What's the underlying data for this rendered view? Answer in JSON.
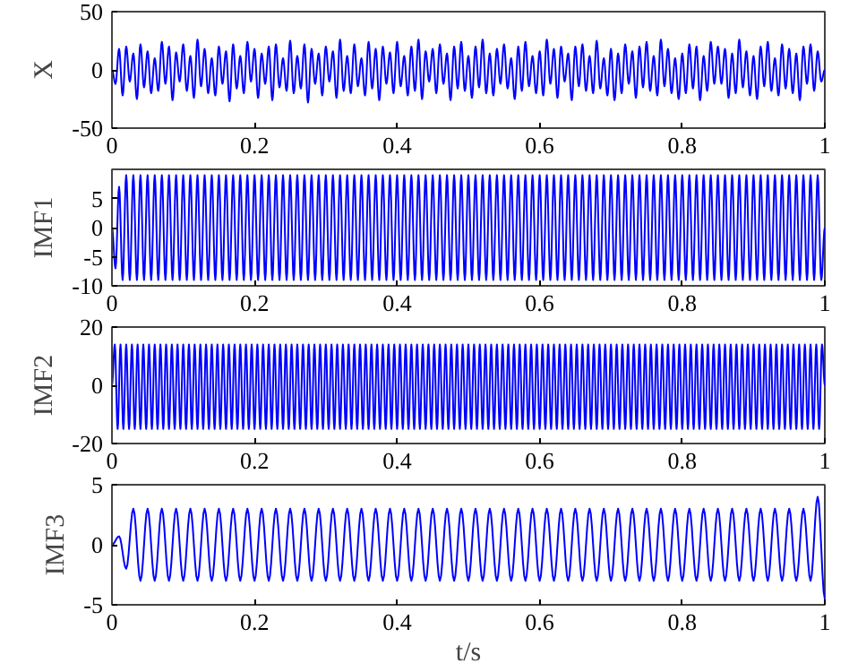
{
  "chart_data": [
    {
      "type": "line",
      "ylabel": "X",
      "xlim": [
        0,
        1
      ],
      "xticks": [
        0,
        0.2,
        0.4,
        0.6,
        0.8,
        1
      ],
      "ylim": [
        -50,
        50
      ],
      "yticks": [
        -50,
        0,
        50
      ],
      "x": [
        0,
        0.005,
        0.01,
        0.015,
        0.02,
        0.025,
        0.03,
        0.035,
        0.04,
        0.045,
        0.05,
        0.055,
        0.06,
        0.065,
        0.07,
        0.075,
        0.08,
        0.085,
        0.09,
        0.095,
        0.1,
        0.105,
        0.11,
        0.115,
        0.12,
        0.125,
        0.13,
        0.135,
        0.14,
        0.145,
        0.15,
        0.155,
        0.16,
        0.165,
        0.17,
        0.175,
        0.18,
        0.185,
        0.19,
        0.195,
        0.2,
        0.205,
        0.21,
        0.215,
        0.22,
        0.225,
        0.23,
        0.235,
        0.24,
        0.245,
        0.25,
        0.255,
        0.26,
        0.265,
        0.27,
        0.275,
        0.28,
        0.285,
        0.29,
        0.295,
        0.3,
        0.305,
        0.31,
        0.315,
        0.32,
        0.325,
        0.33,
        0.335,
        0.34,
        0.345,
        0.35,
        0.355,
        0.36,
        0.365,
        0.37,
        0.375,
        0.38,
        0.385,
        0.39,
        0.395,
        0.4,
        0.405,
        0.41,
        0.415,
        0.42,
        0.425,
        0.43,
        0.435,
        0.44,
        0.445,
        0.45,
        0.455,
        0.46,
        0.465,
        0.47,
        0.475,
        0.48,
        0.485,
        0.49,
        0.495,
        0.5,
        0.505,
        0.51,
        0.515,
        0.52,
        0.525,
        0.53,
        0.535,
        0.54,
        0.545,
        0.55,
        0.555,
        0.56,
        0.565,
        0.57,
        0.575,
        0.58,
        0.585,
        0.59,
        0.595,
        0.6,
        0.605,
        0.61,
        0.615,
        0.62,
        0.625,
        0.63,
        0.635,
        0.64,
        0.645,
        0.65,
        0.655,
        0.66,
        0.665,
        0.67,
        0.675,
        0.68,
        0.685,
        0.69,
        0.695,
        0.7,
        0.705,
        0.71,
        0.715,
        0.72,
        0.725,
        0.73,
        0.735,
        0.74,
        0.745,
        0.75,
        0.755,
        0.76,
        0.765,
        0.77,
        0.775,
        0.78,
        0.785,
        0.79,
        0.795,
        0.8,
        0.805,
        0.81,
        0.815,
        0.82,
        0.825,
        0.83,
        0.835,
        0.84,
        0.845,
        0.85,
        0.855,
        0.86,
        0.865,
        0.87,
        0.875,
        0.88,
        0.885,
        0.89,
        0.895,
        0.9,
        0.905,
        0.91,
        0.915,
        0.92,
        0.925,
        0.93,
        0.935,
        0.94,
        0.945,
        0.95,
        0.955,
        0.96,
        0.965,
        0.97,
        0.975,
        0.98,
        0.985,
        0.99,
        0.995,
        1
      ],
      "series": [
        {
          "color": "#0000ff",
          "values": [
            0,
            -12,
            18,
            -22,
            20,
            -10,
            14,
            -25,
            22,
            -15,
            16,
            -20,
            10,
            -18,
            24,
            -12,
            20,
            -26,
            15,
            -10,
            22,
            -18,
            12,
            -24,
            26,
            -14,
            18,
            -20,
            10,
            -22,
            20,
            -12,
            16,
            -27,
            22,
            -16,
            12,
            -20,
            24,
            -10,
            18,
            -24,
            14,
            -12,
            20,
            -26,
            22,
            -15,
            10,
            -18,
            25,
            -20,
            12,
            -16,
            22,
            -28,
            18,
            -12,
            14,
            -22,
            20,
            -10,
            16,
            -24,
            26,
            -18,
            12,
            -20,
            22,
            -14,
            10,
            -22,
            24,
            -16,
            18,
            -26,
            20,
            -12,
            15,
            -20,
            24,
            -14,
            12,
            -22,
            20,
            -18,
            26,
            -25,
            16,
            -10,
            18,
            -20,
            22,
            -12,
            14,
            -26,
            20,
            -16,
            24,
            -18,
            12,
            -24,
            20,
            -15,
            26,
            -20,
            14,
            -22,
            18,
            -12,
            22,
            -16,
            10,
            -25,
            20,
            -18,
            24,
            -14,
            12,
            -20,
            16,
            -22,
            26,
            -12,
            18,
            -24,
            20,
            -10,
            14,
            -26,
            20,
            -14,
            22,
            -18,
            12,
            -20,
            25,
            -16,
            10,
            -22,
            18,
            -26,
            14,
            -20,
            22,
            -12,
            16,
            -24,
            20,
            -15,
            24,
            -18,
            12,
            -22,
            26,
            -14,
            18,
            -20,
            10,
            -25,
            14,
            -20,
            22,
            -16,
            20,
            -26,
            12,
            -18,
            24,
            -12,
            20,
            -12,
            18,
            -24,
            14,
            -20,
            26,
            -15,
            16,
            -22,
            12,
            -25,
            20,
            -14,
            24,
            -18,
            10,
            -22,
            22,
            -16,
            18,
            -20,
            14,
            -26,
            20,
            -12,
            22,
            -18,
            16,
            -10,
            0
          ]
        }
      ]
    },
    {
      "type": "line",
      "ylabel": "IMF1",
      "xlim": [
        0,
        1
      ],
      "xticks": [
        0,
        0.2,
        0.4,
        0.6,
        0.8,
        1
      ],
      "ylim": [
        -10,
        10
      ],
      "yticks": [
        -10,
        -5,
        0,
        5
      ],
      "x": [
        0,
        0.005,
        0.01,
        0.015,
        0.02,
        0.025,
        0.03,
        0.035,
        0.04,
        0.045,
        0.05,
        0.055,
        0.06,
        0.065,
        0.07,
        0.075,
        0.08,
        0.085,
        0.09,
        0.095,
        0.1,
        0.105,
        0.11,
        0.115,
        0.12,
        0.125,
        0.13,
        0.135,
        0.14,
        0.145,
        0.15,
        0.155,
        0.16,
        0.165,
        0.17,
        0.175,
        0.18,
        0.185,
        0.19,
        0.195,
        0.2,
        0.205,
        0.21,
        0.215,
        0.22,
        0.225,
        0.23,
        0.235,
        0.24,
        0.245,
        0.25,
        0.255,
        0.26,
        0.265,
        0.27,
        0.275,
        0.28,
        0.285,
        0.29,
        0.295,
        0.3,
        0.305,
        0.31,
        0.315,
        0.32,
        0.325,
        0.33,
        0.335,
        0.34,
        0.345,
        0.35,
        0.355,
        0.36,
        0.365,
        0.37,
        0.375,
        0.38,
        0.385,
        0.39,
        0.395,
        0.4,
        0.405,
        0.41,
        0.415,
        0.42,
        0.425,
        0.43,
        0.435,
        0.44,
        0.445,
        0.45,
        0.455,
        0.46,
        0.465,
        0.47,
        0.475,
        0.48,
        0.485,
        0.49,
        0.495,
        0.5,
        0.505,
        0.51,
        0.515,
        0.52,
        0.525,
        0.53,
        0.535,
        0.54,
        0.545,
        0.55,
        0.555,
        0.56,
        0.565,
        0.57,
        0.575,
        0.58,
        0.585,
        0.59,
        0.595,
        0.6,
        0.605,
        0.61,
        0.615,
        0.62,
        0.625,
        0.63,
        0.635,
        0.64,
        0.645,
        0.65,
        0.655,
        0.66,
        0.665,
        0.67,
        0.675,
        0.68,
        0.685,
        0.69,
        0.695,
        0.7,
        0.705,
        0.71,
        0.715,
        0.72,
        0.725,
        0.73,
        0.735,
        0.74,
        0.745,
        0.75,
        0.755,
        0.76,
        0.765,
        0.77,
        0.775,
        0.78,
        0.785,
        0.79,
        0.795,
        0.8,
        0.805,
        0.81,
        0.815,
        0.82,
        0.825,
        0.83,
        0.835,
        0.84,
        0.845,
        0.85,
        0.855,
        0.86,
        0.865,
        0.87,
        0.875,
        0.88,
        0.885,
        0.89,
        0.895,
        0.9,
        0.905,
        0.91,
        0.915,
        0.92,
        0.925,
        0.93,
        0.935,
        0.94,
        0.945,
        0.95,
        0.955,
        0.96,
        0.965,
        0.97,
        0.975,
        0.98,
        0.985,
        0.99,
        0.995,
        1
      ],
      "series": [
        {
          "color": "#0000ff",
          "values": [
            0,
            -7,
            7,
            -9,
            9,
            -9,
            9,
            -9,
            9,
            -9,
            9,
            -9,
            9,
            -9,
            9,
            -9,
            9,
            -9,
            9,
            -9,
            9,
            -9,
            9,
            -9,
            9,
            -9,
            9,
            -9,
            9,
            -9,
            9,
            -9,
            9,
            -9,
            9,
            -9,
            9,
            -9,
            9,
            -9,
            9,
            -9,
            9,
            -9,
            9,
            -9,
            9,
            -9,
            9,
            -9,
            9,
            -9,
            9,
            -9,
            9,
            -9,
            9,
            -9,
            9,
            -9,
            9,
            -9,
            9,
            -9,
            9,
            -9,
            9,
            -9,
            9,
            -9,
            9,
            -9,
            9,
            -9,
            9,
            -9,
            9,
            -9,
            9,
            -9,
            9,
            -9,
            9,
            -9,
            9,
            -9,
            9,
            -9,
            9,
            -9,
            9,
            -9,
            9,
            -9,
            9,
            -9,
            9,
            -9,
            9,
            -9,
            9,
            -9,
            9,
            -9,
            9,
            -9,
            9,
            -9,
            9,
            -9,
            9,
            -9,
            9,
            -9,
            9,
            -9,
            9,
            -9,
            9,
            -9,
            9,
            -9,
            9,
            -9,
            9,
            -9,
            9,
            -9,
            9,
            -9,
            9,
            -9,
            9,
            -9,
            9,
            -9,
            9,
            -9,
            9,
            -9,
            9,
            -9,
            9,
            -9,
            9,
            -9,
            9,
            -9,
            9,
            -9,
            9,
            -9,
            9,
            -9,
            9,
            -9,
            9,
            -9,
            9,
            -9,
            9,
            -9,
            9,
            -9,
            9,
            -9,
            9,
            -9,
            9,
            -9,
            9,
            -9,
            9,
            -9,
            9,
            -9,
            9,
            -9,
            9,
            -9,
            9,
            -9,
            9,
            -9,
            9,
            -9,
            9,
            -9,
            9,
            -9,
            9,
            -9,
            9,
            -9,
            9,
            -9,
            9,
            -9,
            9,
            -9,
            0
          ]
        }
      ]
    },
    {
      "type": "line",
      "ylabel": "IMF2",
      "xlim": [
        0,
        1
      ],
      "xticks": [
        0,
        0.2,
        0.4,
        0.6,
        0.8,
        1
      ],
      "ylim": [
        -20,
        20
      ],
      "yticks": [
        -20,
        0,
        20
      ],
      "x": [
        0,
        0.004,
        0.008,
        0.012,
        0.016,
        0.02,
        0.024,
        0.028,
        0.032,
        0.036,
        0.04,
        0.044,
        0.048,
        0.052,
        0.056,
        0.06,
        0.064,
        0.068,
        0.072,
        0.076,
        0.08,
        0.084,
        0.088,
        0.092,
        0.096,
        0.1,
        0.104,
        0.108,
        0.112,
        0.116,
        0.12,
        0.124,
        0.128,
        0.132,
        0.136,
        0.14,
        0.144,
        0.148,
        0.152,
        0.156,
        0.16,
        0.164,
        0.168,
        0.172,
        0.176,
        0.18,
        0.184,
        0.188,
        0.192,
        0.196,
        0.2,
        0.204,
        0.208,
        0.212,
        0.216,
        0.22,
        0.224,
        0.228,
        0.232,
        0.236,
        0.24,
        0.244,
        0.248,
        0.252,
        0.256,
        0.26,
        0.264,
        0.268,
        0.272,
        0.276,
        0.28,
        0.284,
        0.288,
        0.292,
        0.296,
        0.3,
        0.304,
        0.308,
        0.312,
        0.316,
        0.32,
        0.324,
        0.328,
        0.332,
        0.336,
        0.34,
        0.344,
        0.348,
        0.352,
        0.356,
        0.36,
        0.364,
        0.368,
        0.372,
        0.376,
        0.38,
        0.384,
        0.388,
        0.392,
        0.396,
        0.4,
        0.404,
        0.408,
        0.412,
        0.416,
        0.42,
        0.424,
        0.428,
        0.432,
        0.436,
        0.44,
        0.444,
        0.448,
        0.452,
        0.456,
        0.46,
        0.464,
        0.468,
        0.472,
        0.476,
        0.48,
        0.484,
        0.488,
        0.492,
        0.496,
        0.5,
        0.504,
        0.508,
        0.512,
        0.516,
        0.52,
        0.524,
        0.528,
        0.532,
        0.536,
        0.54,
        0.544,
        0.548,
        0.552,
        0.556,
        0.56,
        0.564,
        0.568,
        0.572,
        0.576,
        0.58,
        0.584,
        0.588,
        0.592,
        0.596,
        0.6,
        0.604,
        0.608,
        0.612,
        0.616,
        0.62,
        0.624,
        0.628,
        0.632,
        0.636,
        0.64,
        0.644,
        0.648,
        0.652,
        0.656,
        0.66,
        0.664,
        0.668,
        0.672,
        0.676,
        0.68,
        0.684,
        0.688,
        0.692,
        0.696,
        0.7,
        0.704,
        0.708,
        0.712,
        0.716,
        0.72,
        0.724,
        0.728,
        0.732,
        0.736,
        0.74,
        0.744,
        0.748,
        0.752,
        0.756,
        0.76,
        0.764,
        0.768,
        0.772,
        0.776,
        0.78,
        0.784,
        0.788,
        0.792,
        0.796,
        0.8,
        0.804,
        0.808,
        0.812,
        0.816,
        0.82,
        0.824,
        0.828,
        0.832,
        0.836,
        0.84,
        0.844,
        0.848,
        0.852,
        0.856,
        0.86,
        0.864,
        0.868,
        0.872,
        0.876,
        0.88,
        0.884,
        0.888,
        0.892,
        0.896,
        0.9,
        0.904,
        0.908,
        0.912,
        0.916,
        0.92,
        0.924,
        0.928,
        0.932,
        0.936,
        0.94,
        0.944,
        0.948,
        0.952,
        0.956,
        0.96,
        0.964,
        0.968,
        0.972,
        0.976,
        0.98,
        0.984,
        0.988,
        0.992,
        0.996,
        1
      ],
      "series": [
        {
          "color": "#0000ff",
          "values": [
            0,
            14,
            -15,
            14,
            -15,
            14,
            -15,
            14,
            -15,
            14,
            -15,
            14,
            -15,
            14,
            -15,
            14,
            -15,
            14,
            -15,
            14,
            -15,
            14,
            -15,
            14,
            -15,
            14,
            -15,
            14,
            -15,
            14,
            -15,
            14,
            -15,
            14,
            -15,
            14,
            -15,
            14,
            -15,
            14,
            -15,
            14,
            -15,
            14,
            -15,
            14,
            -15,
            14,
            -15,
            14,
            -15,
            14,
            -15,
            14,
            -15,
            14,
            -15,
            14,
            -15,
            14,
            -15,
            14,
            -15,
            14,
            -15,
            14,
            -15,
            14,
            -15,
            14,
            -15,
            14,
            -15,
            14,
            -15,
            14,
            -15,
            14,
            -15,
            14,
            -15,
            14,
            -15,
            14,
            -15,
            14,
            -15,
            14,
            -15,
            14,
            -15,
            14,
            -15,
            14,
            -15,
            14,
            -15,
            14,
            -15,
            14,
            -15,
            14,
            -15,
            14,
            -15,
            14,
            -15,
            14,
            -15,
            14,
            -15,
            14,
            -15,
            14,
            -15,
            14,
            -15,
            14,
            -15,
            14,
            -15,
            14,
            -15,
            14,
            -15,
            14,
            -15,
            14,
            -15,
            14,
            -15,
            14,
            -15,
            14,
            -15,
            14,
            -15,
            14,
            -15,
            14,
            -15,
            14,
            -15,
            14,
            -15,
            14,
            -15,
            14,
            -15,
            14,
            -15,
            14,
            -15,
            14,
            -15,
            14,
            -15,
            14,
            -15,
            14,
            -15,
            14,
            -15,
            14,
            -15,
            14,
            -15,
            14,
            -15,
            14,
            -15,
            14,
            -15,
            14,
            -15,
            14,
            -15,
            14,
            -15,
            14,
            -15,
            14,
            -15,
            14,
            -15,
            14,
            -15,
            14,
            -15,
            14,
            -15,
            14,
            -15,
            14,
            -15,
            14,
            -15,
            14,
            -15,
            14,
            -15,
            14,
            -15,
            14,
            -15,
            14,
            -15,
            14,
            -15,
            14,
            -15,
            14,
            -15,
            14,
            -15,
            14,
            -15,
            14,
            -15,
            14,
            -15,
            14,
            -15,
            14,
            -15,
            14,
            -15,
            14,
            -15,
            14,
            -15,
            14,
            -15,
            14,
            -15,
            14,
            -15,
            14,
            -15,
            14,
            -15,
            14,
            -15,
            14,
            -15,
            14,
            -15,
            14,
            -15,
            14,
            0
          ]
        }
      ]
    },
    {
      "type": "line",
      "ylabel": "IMF3",
      "xlabel": "t/s",
      "xlim": [
        0,
        1
      ],
      "xticks": [
        0,
        0.2,
        0.4,
        0.6,
        0.8,
        1
      ],
      "ylim": [
        -5,
        5
      ],
      "yticks": [
        -5,
        0,
        5
      ],
      "x": [
        0,
        0.01,
        0.02,
        0.03,
        0.04,
        0.05,
        0.06,
        0.07,
        0.08,
        0.09,
        0.1,
        0.11,
        0.12,
        0.13,
        0.14,
        0.15,
        0.16,
        0.17,
        0.18,
        0.19,
        0.2,
        0.21,
        0.22,
        0.23,
        0.24,
        0.25,
        0.26,
        0.27,
        0.28,
        0.29,
        0.3,
        0.31,
        0.32,
        0.33,
        0.34,
        0.35,
        0.36,
        0.37,
        0.38,
        0.39,
        0.4,
        0.41,
        0.42,
        0.43,
        0.44,
        0.45,
        0.46,
        0.47,
        0.48,
        0.49,
        0.5,
        0.51,
        0.52,
        0.53,
        0.54,
        0.55,
        0.56,
        0.57,
        0.58,
        0.59,
        0.6,
        0.61,
        0.62,
        0.63,
        0.64,
        0.65,
        0.66,
        0.67,
        0.68,
        0.69,
        0.7,
        0.71,
        0.72,
        0.73,
        0.74,
        0.75,
        0.76,
        0.77,
        0.78,
        0.79,
        0.8,
        0.81,
        0.82,
        0.83,
        0.84,
        0.85,
        0.86,
        0.87,
        0.88,
        0.89,
        0.9,
        0.91,
        0.92,
        0.93,
        0.94,
        0.95,
        0.96,
        0.97,
        0.98,
        0.99,
        1
      ],
      "series": [
        {
          "color": "#0000ff",
          "values": [
            0,
            0.7,
            -2,
            3,
            -3,
            3,
            -3,
            3,
            -3,
            3,
            -3,
            3,
            -3,
            3,
            -3,
            3,
            -3,
            3,
            -3,
            3,
            -3,
            3,
            -3,
            3,
            -3,
            3,
            -3,
            3,
            -3,
            3,
            -3,
            3,
            -3,
            3,
            -3,
            3,
            -3,
            3,
            -3,
            3,
            -3,
            3,
            -3,
            3,
            -3,
            3,
            -3,
            3,
            -3,
            3,
            -3,
            3,
            -3,
            3,
            -3,
            3,
            -3,
            3,
            -3,
            3,
            -3,
            3,
            -3,
            3,
            -3,
            3,
            -3,
            3,
            -3,
            3,
            -3,
            3,
            -3,
            3,
            -3,
            3,
            -3,
            3,
            -3,
            3,
            -3,
            3,
            -3,
            3,
            -3,
            3,
            -3,
            3,
            -3,
            3,
            -3,
            3,
            -3,
            3,
            -3,
            3,
            -3,
            3,
            -3,
            4,
            -4.5
          ]
        }
      ]
    }
  ]
}
